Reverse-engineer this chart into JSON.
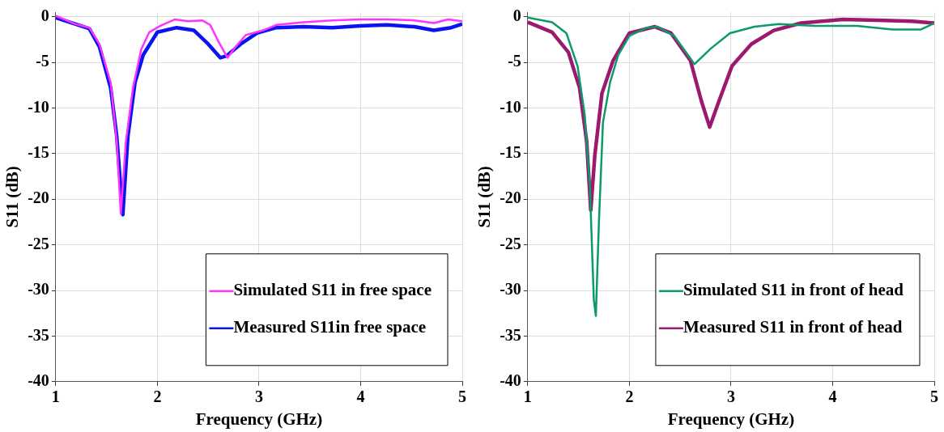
{
  "chart_data": [
    {
      "type": "line",
      "xlabel": "Frequency (GHz)",
      "ylabel": "S11 (dB)",
      "xlim": [
        1,
        5
      ],
      "xticks": [
        1,
        2,
        3,
        4,
        5
      ],
      "ylim": [
        -40,
        0.5
      ],
      "yticks": [
        0,
        -5,
        -10,
        -15,
        -20,
        -25,
        -30,
        -35,
        -40
      ],
      "grid": true,
      "legend": "bottom right",
      "marker": "none",
      "series": [
        {
          "name": "Simulated S11 in free space",
          "color": "#ff33ff",
          "x": [
            1.0,
            1.19,
            1.33,
            1.43,
            1.54,
            1.6,
            1.64,
            1.69,
            1.76,
            1.84,
            1.92,
            2.03,
            2.17,
            2.3,
            2.44,
            2.52,
            2.6,
            2.69,
            2.77,
            2.87,
            3.04,
            3.17,
            3.44,
            3.72,
            3.99,
            4.26,
            4.53,
            4.72,
            4.86,
            5.0
          ],
          "values": [
            0.1,
            -0.8,
            -1.2,
            -3.0,
            -7.2,
            -13.7,
            -21.6,
            -13.7,
            -7.8,
            -3.6,
            -1.7,
            -1.0,
            -0.3,
            -0.5,
            -0.4,
            -0.9,
            -2.7,
            -4.5,
            -3.3,
            -2.0,
            -1.5,
            -0.9,
            -0.6,
            -0.4,
            -0.3,
            -0.3,
            -0.4,
            -0.7,
            -0.3,
            -0.5
          ]
        },
        {
          "name": "Measured S11in free space",
          "color": "#0a14f0",
          "x": [
            1.0,
            1.19,
            1.33,
            1.43,
            1.54,
            1.6,
            1.66,
            1.71,
            1.78,
            1.86,
            2.0,
            2.19,
            2.36,
            2.5,
            2.62,
            2.68,
            2.82,
            2.98,
            3.17,
            3.44,
            3.72,
            3.99,
            4.26,
            4.53,
            4.72,
            4.89,
            5.0
          ],
          "values": [
            -0.1,
            -0.8,
            -1.3,
            -3.3,
            -7.8,
            -13.1,
            -21.7,
            -13.1,
            -7.2,
            -4.2,
            -1.7,
            -1.2,
            -1.5,
            -3.0,
            -4.5,
            -4.3,
            -3.0,
            -1.8,
            -1.2,
            -1.1,
            -1.2,
            -1.0,
            -0.9,
            -1.1,
            -1.5,
            -1.2,
            -0.8
          ]
        }
      ]
    },
    {
      "type": "line",
      "xlabel": "Frequency (GHz)",
      "ylabel": "S11 (dB)",
      "xlim": [
        1,
        5
      ],
      "xticks": [
        1,
        2,
        3,
        4,
        5
      ],
      "ylim": [
        -40,
        0.5
      ],
      "yticks": [
        0,
        -5,
        -10,
        -15,
        -20,
        -25,
        -30,
        -35,
        -40
      ],
      "grid": true,
      "legend": "bottom right",
      "marker": "none",
      "series": [
        {
          "name": "Simulated S11 in front of head",
          "color": "#0b9a6a",
          "x": [
            1.0,
            1.24,
            1.38,
            1.49,
            1.56,
            1.61,
            1.65,
            1.67,
            1.7,
            1.74,
            1.81,
            1.89,
            2.0,
            2.17,
            2.28,
            2.44,
            2.64,
            2.8,
            2.99,
            3.23,
            3.47,
            3.83,
            4.24,
            4.59,
            4.87,
            5.0
          ],
          "values": [
            -0.1,
            -0.6,
            -1.8,
            -5.4,
            -10.7,
            -18.2,
            -31.0,
            -32.8,
            -22.6,
            -11.6,
            -7.2,
            -4.2,
            -2.1,
            -1.2,
            -1.1,
            -2.1,
            -5.2,
            -3.5,
            -1.8,
            -1.1,
            -0.8,
            -1.0,
            -1.0,
            -1.4,
            -1.4,
            -0.7
          ]
        },
        {
          "name": "Measured S11 in front of head",
          "color": "#9b1a6e",
          "x": [
            1.0,
            1.24,
            1.4,
            1.51,
            1.58,
            1.62,
            1.66,
            1.73,
            1.84,
            2.0,
            2.25,
            2.41,
            2.6,
            2.71,
            2.79,
            2.88,
            3.01,
            3.2,
            3.42,
            3.69,
            4.1,
            4.51,
            4.78,
            5.0
          ],
          "values": [
            -0.6,
            -1.7,
            -3.9,
            -7.8,
            -13.7,
            -21.2,
            -15.2,
            -8.4,
            -4.8,
            -1.8,
            -1.1,
            -1.8,
            -4.8,
            -9.3,
            -12.1,
            -9.3,
            -5.4,
            -3.0,
            -1.5,
            -0.7,
            -0.3,
            -0.4,
            -0.5,
            -0.7
          ]
        }
      ]
    }
  ]
}
